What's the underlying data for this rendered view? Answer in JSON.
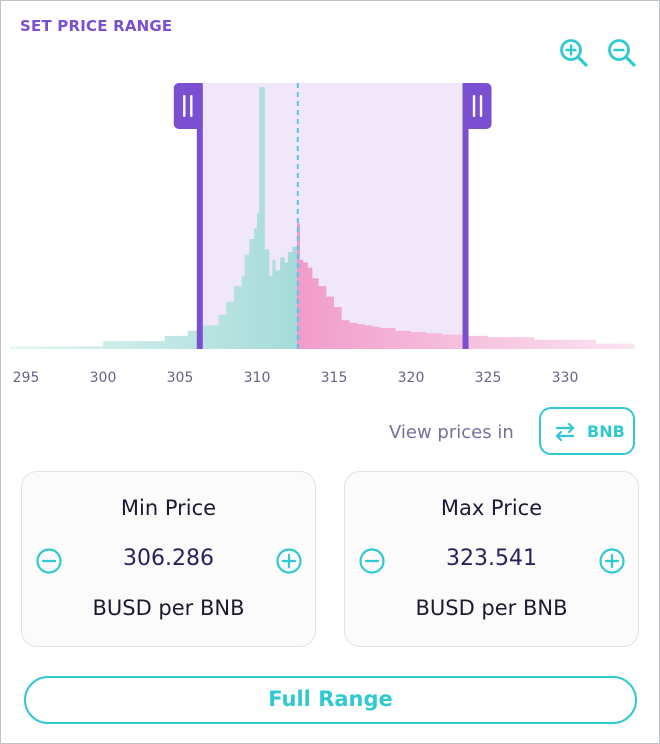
{
  "header": {
    "title": "SET PRICE RANGE"
  },
  "zoom": {
    "in_icon": "zoom-in-icon",
    "out_icon": "zoom-out-icon"
  },
  "chart_data": {
    "type": "area",
    "x_ticks": [
      "295",
      "300",
      "305",
      "310",
      "315",
      "320",
      "325",
      "330"
    ],
    "xlim": [
      294,
      334.5
    ],
    "current_price": 312.65,
    "selected_range": [
      306.286,
      323.541
    ],
    "series": [
      {
        "x": [
          294,
          300,
          304,
          305.5,
          306.5,
          307.5,
          308,
          308.5,
          309,
          309.2,
          309.5,
          309.8,
          310,
          310.15,
          310.3,
          310.5,
          310.8,
          311,
          311.2,
          311.5,
          311.8,
          312,
          312.3,
          312.6
        ],
        "values": [
          1,
          3,
          5,
          7,
          9,
          13,
          18,
          24,
          28,
          36,
          42,
          46,
          52,
          100,
          100,
          38,
          28,
          34,
          30,
          35,
          33,
          37,
          39,
          50
        ]
      },
      {
        "x": [
          312.6,
          312.8,
          313,
          313.3,
          313.6,
          314,
          314.5,
          315,
          315.5,
          316,
          316.5,
          317,
          317.5,
          318,
          319,
          320,
          321,
          322,
          323.5,
          325,
          328,
          332,
          334.5
        ],
        "values": [
          48,
          34,
          33,
          31,
          27,
          24,
          20,
          16,
          11,
          10,
          9.5,
          9,
          8.5,
          8,
          7,
          6.5,
          6,
          5.5,
          5,
          4.5,
          3.5,
          2,
          1
        ]
      }
    ]
  },
  "view_prices": {
    "label": "View prices in",
    "currency": "BNB",
    "icon": "swap-arrows-icon"
  },
  "min_price": {
    "title": "Min Price",
    "value": "306.286",
    "unit": "BUSD per BNB"
  },
  "max_price": {
    "title": "Max Price",
    "value": "323.541",
    "unit": "BUSD per BNB"
  },
  "full_range": {
    "label": "Full Range"
  },
  "colors": {
    "purple": "#7a4fd1",
    "teal": "#31c9d1",
    "range_fill": "#ecdffa",
    "bar_left": "#a9dcdc",
    "bar_right": "#f3a6cf",
    "dashed": "#5bc3e8"
  }
}
